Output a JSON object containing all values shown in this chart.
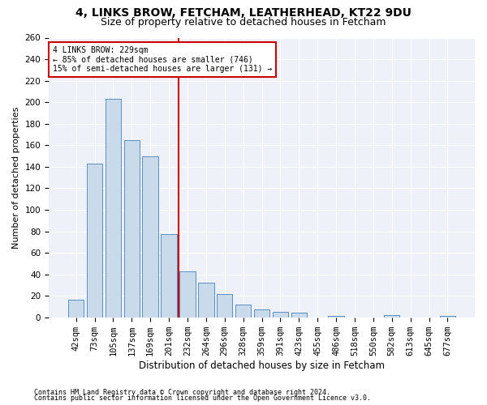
{
  "title1": "4, LINKS BROW, FETCHAM, LEATHERHEAD, KT22 9DU",
  "title2": "Size of property relative to detached houses in Fetcham",
  "xlabel": "Distribution of detached houses by size in Fetcham",
  "ylabel": "Number of detached properties",
  "categories": [
    "42sqm",
    "73sqm",
    "105sqm",
    "137sqm",
    "169sqm",
    "201sqm",
    "232sqm",
    "264sqm",
    "296sqm",
    "328sqm",
    "359sqm",
    "391sqm",
    "423sqm",
    "455sqm",
    "486sqm",
    "518sqm",
    "550sqm",
    "582sqm",
    "613sqm",
    "645sqm",
    "677sqm"
  ],
  "values": [
    16,
    143,
    203,
    165,
    150,
    77,
    43,
    32,
    22,
    12,
    7,
    5,
    4,
    0,
    1,
    0,
    0,
    2,
    0,
    0,
    1
  ],
  "bar_color": "#c9daea",
  "bar_edge_color": "#5a8fc2",
  "bar_width": 0.85,
  "vline_x": 5.5,
  "vline_color": "#cc0000",
  "annotation_text": "4 LINKS BROW: 229sqm\n← 85% of detached houses are smaller (746)\n15% of semi-detached houses are larger (131) →",
  "annotation_box_color": "#ffffff",
  "annotation_box_edge": "#cc0000",
  "ylim": [
    0,
    260
  ],
  "yticks": [
    0,
    20,
    40,
    60,
    80,
    100,
    120,
    140,
    160,
    180,
    200,
    220,
    240,
    260
  ],
  "footnote1": "Contains HM Land Registry data © Crown copyright and database right 2024.",
  "footnote2": "Contains public sector information licensed under the Open Government Licence v3.0.",
  "bg_color": "#eef2f8",
  "title1_fontsize": 10,
  "title2_fontsize": 9,
  "xlabel_fontsize": 8.5,
  "ylabel_fontsize": 8,
  "tick_fontsize": 7.5,
  "footnote_fontsize": 6
}
